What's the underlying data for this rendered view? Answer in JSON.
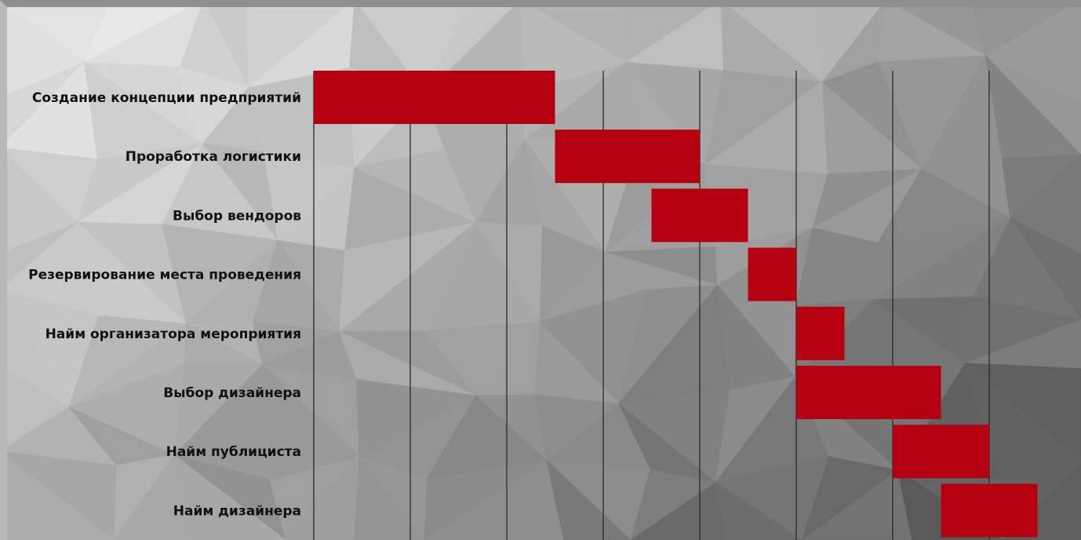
{
  "colors": {
    "bar": "#b7000f",
    "grid": "#2a2a2a"
  },
  "chart_data": {
    "type": "bar",
    "orientation": "horizontal",
    "subtype": "gantt",
    "title": "",
    "xlabel": "",
    "ylabel": "",
    "xlim": [
      0,
      7.5
    ],
    "grid": true,
    "tasks": [
      {
        "label": "Создание концепции предприятий",
        "start": 0,
        "end": 2.5
      },
      {
        "label": "Проработка логистики ",
        "start": 2.5,
        "end": 4
      },
      {
        "label": "Выбор вендоров",
        "start": 3.5,
        "end": 4.5
      },
      {
        "label": "Резервирование места проведения",
        "start": 4.5,
        "end": 5
      },
      {
        "label": "Найм организатора мероприятия",
        "start": 5,
        "end": 5.5
      },
      {
        "label": "Выбор дизайнера",
        "start": 5,
        "end": 6.5
      },
      {
        "label": "Найм публициста",
        "start": 6,
        "end": 7
      },
      {
        "label": "Найм дизайнера",
        "start": 6.5,
        "end": 7.5
      }
    ]
  }
}
